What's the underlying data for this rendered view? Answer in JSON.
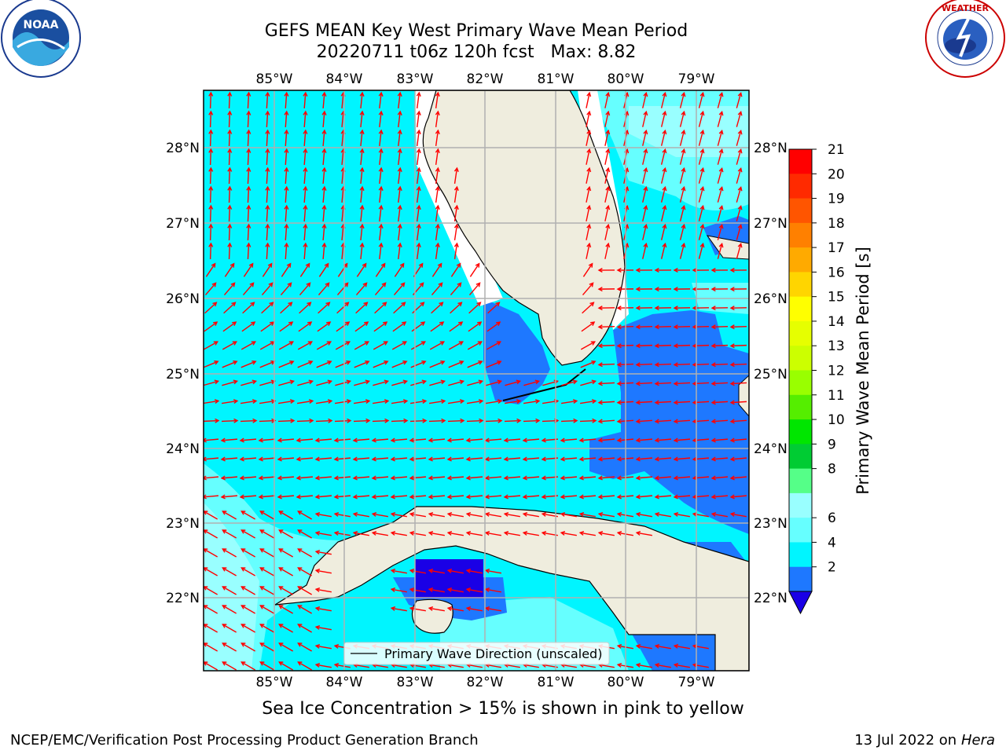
{
  "header": {
    "title_line1": "GEFS MEAN Key West Primary Wave Mean Period",
    "title_line2": "20220711 t06z 120h fcst   Max: 8.82"
  },
  "logos": {
    "left_text": "NOAA",
    "left_ring_text": "NATIONAL OCEANIC AND ATMOSPHERIC ADMINISTRATION · U.S. DEPARTMENT OF COMMERCE",
    "right_ring_text": "NATIONAL WEATHER SERVICE"
  },
  "map": {
    "lon_labels": [
      "85°W",
      "84°W",
      "83°W",
      "82°W",
      "81°W",
      "80°W",
      "79°W"
    ],
    "lat_labels": [
      "28°N",
      "27°N",
      "26°N",
      "25°N",
      "24°N",
      "23°N",
      "22°N"
    ],
    "legend_label": "Primary Wave Direction (unscaled)",
    "colors": {
      "ocean_light": "#00f5ff",
      "ocean_dark": "#1e78ff",
      "ocean_pale": "#66ffff",
      "ocean_paler": "#99ffff",
      "ocean_deep": "#1a00e6",
      "land": "#efedde",
      "grid": "#b0b0b0",
      "arrow": "#ff0000"
    }
  },
  "colorbar": {
    "label": "Primary Wave Mean Period [s]",
    "ticks": [
      "21",
      "20",
      "19",
      "18",
      "17",
      "16",
      "15",
      "14",
      "13",
      "12",
      "11",
      "10",
      "9",
      "8",
      "6",
      "4",
      "2"
    ],
    "colors_top_to_bottom": [
      "#ff0000",
      "#ff2a00",
      "#ff5500",
      "#ff8000",
      "#ffaa00",
      "#ffd500",
      "#ffff00",
      "#e6ff00",
      "#ccff00",
      "#99ff00",
      "#55ee00",
      "#00e600",
      "#00cc33",
      "#55ff88",
      "#99ffff",
      "#66ffff",
      "#00f5ff",
      "#1e78ff"
    ],
    "extend_color": "#1a00e6"
  },
  "footer": {
    "sea_ice_note": "Sea Ice Concentration > 15% is shown in pink to yellow",
    "left": "NCEP/EMC/Verification Post Processing Product Generation Branch",
    "right_prefix": "13 Jul 2022 on ",
    "right_host": "Hera"
  }
}
